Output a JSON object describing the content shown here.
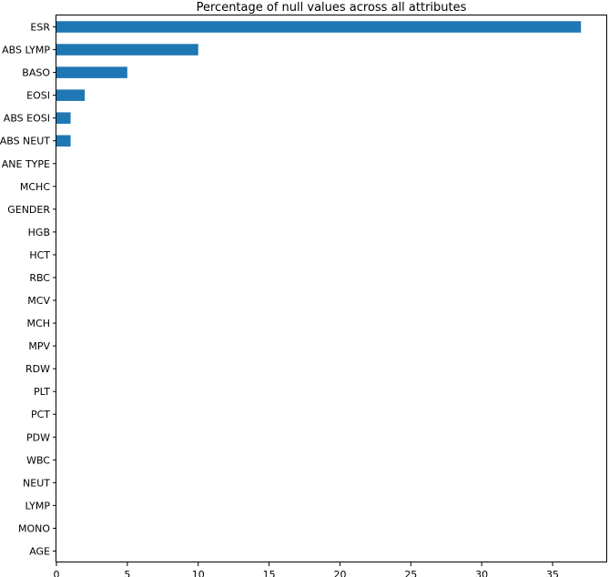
{
  "chart_data": {
    "type": "bar",
    "orientation": "horizontal",
    "title": "Percentage of null values across all attributes",
    "xlabel": "",
    "ylabel": "",
    "categories": [
      "ESR",
      "ABS LYMP",
      "BASO",
      "EOSI",
      "ABS EOSI",
      "ABS NEUT",
      "ANE TYPE",
      "MCHC",
      "GENDER",
      "HGB",
      "HCT",
      "RBC",
      "MCV",
      "MCH",
      "MPV",
      "RDW",
      "PLT",
      "PCT",
      "PDW",
      "WBC",
      "NEUT",
      "LYMP",
      "MONO",
      "AGE"
    ],
    "values": [
      37,
      10,
      5,
      2,
      1,
      1,
      0,
      0,
      0,
      0,
      0,
      0,
      0,
      0,
      0,
      0,
      0,
      0,
      0,
      0,
      0,
      0,
      0,
      0
    ],
    "xlim": [
      0,
      38.85
    ],
    "xticks": [
      0,
      5,
      10,
      15,
      20,
      25,
      30,
      35
    ],
    "grid": false,
    "legend": "none",
    "bar_color": "#1f77b4"
  }
}
